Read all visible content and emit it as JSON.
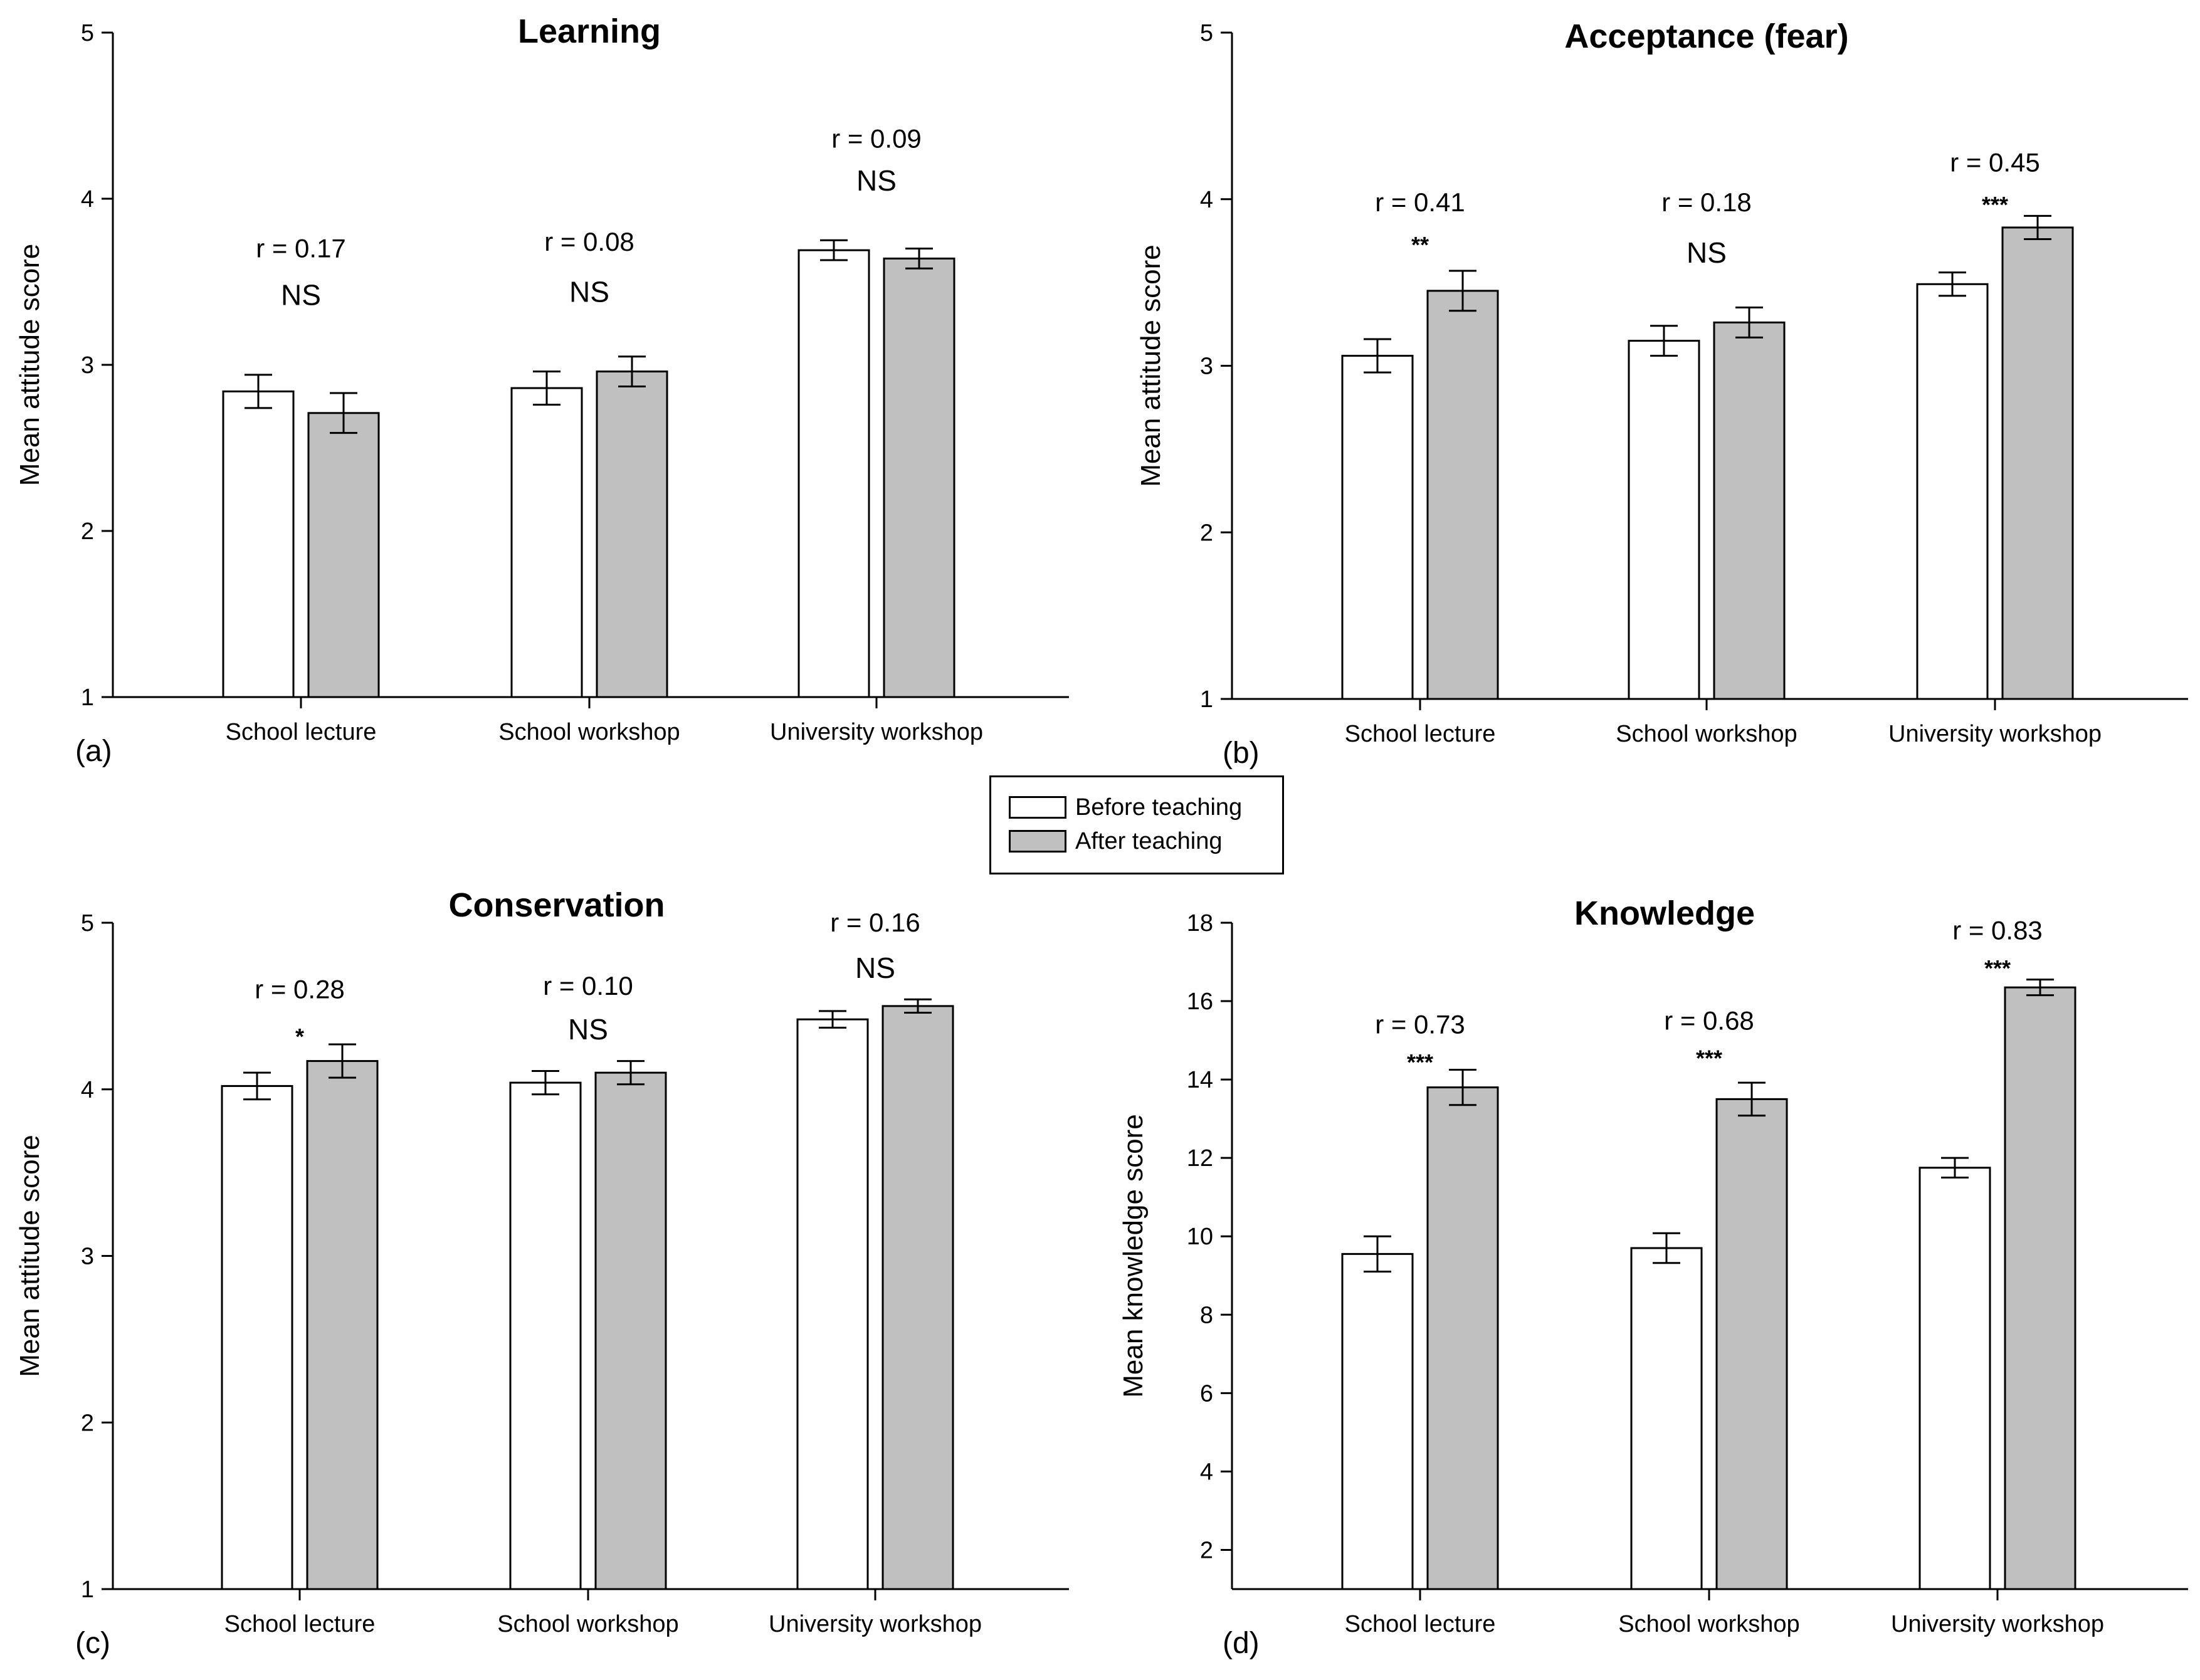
{
  "legend": {
    "before_label": "Before teaching",
    "after_label": "After teaching",
    "before_color": "#ffffff",
    "after_color": "#c0c0c0"
  },
  "chart_data": [
    {
      "type": "bar",
      "panel": "(a)",
      "title": "Learning",
      "ylabel": "Mean attitude score",
      "xlabel": "",
      "ylim": [
        1,
        5
      ],
      "yticks": [
        1,
        2,
        3,
        4,
        5
      ],
      "categories": [
        "School lecture",
        "School workshop",
        "University workshop"
      ],
      "series": [
        {
          "name": "Before teaching",
          "values": [
            2.84,
            2.86,
            3.69
          ],
          "errors": [
            0.1,
            0.1,
            0.06
          ]
        },
        {
          "name": "After teaching",
          "values": [
            2.71,
            2.96,
            3.64
          ],
          "errors": [
            0.12,
            0.09,
            0.06
          ]
        }
      ],
      "annotations": [
        {
          "r": "r = 0.17",
          "sig": "NS",
          "r_y": 3.7,
          "sig_y": 3.42
        },
        {
          "r": "r = 0.08",
          "sig": "NS",
          "r_y": 3.74,
          "sig_y": 3.44
        },
        {
          "r": "r = 0.09",
          "sig": "NS",
          "r_y": 4.36,
          "sig_y": 4.11
        }
      ]
    },
    {
      "type": "bar",
      "panel": "(b)",
      "title": "Acceptance (fear)",
      "ylabel": "Mean attitude score",
      "xlabel": "",
      "ylim": [
        1,
        5
      ],
      "yticks": [
        1,
        2,
        3,
        4,
        5
      ],
      "categories": [
        "School lecture",
        "School workshop",
        "University workshop"
      ],
      "series": [
        {
          "name": "Before teaching",
          "values": [
            3.06,
            3.15,
            3.49
          ],
          "errors": [
            0.1,
            0.09,
            0.07
          ]
        },
        {
          "name": "After teaching",
          "values": [
            3.45,
            3.26,
            3.83
          ],
          "errors": [
            0.12,
            0.09,
            0.07
          ]
        }
      ],
      "annotations": [
        {
          "r": "r = 0.41",
          "sig": "**",
          "r_y": 3.98,
          "sig_y": 3.74
        },
        {
          "r": "r = 0.18",
          "sig": "NS",
          "r_y": 3.98,
          "sig_y": 3.68
        },
        {
          "r": "r = 0.45",
          "sig": "***",
          "r_y": 4.22,
          "sig_y": 3.98
        }
      ]
    },
    {
      "type": "bar",
      "panel": "(c)",
      "title": "Conservation",
      "ylabel": "Mean attitude score",
      "xlabel": "",
      "ylim": [
        1,
        5
      ],
      "yticks": [
        1,
        2,
        3,
        4,
        5
      ],
      "categories": [
        "School lecture",
        "School workshop",
        "University workshop"
      ],
      "series": [
        {
          "name": "Before teaching",
          "values": [
            4.02,
            4.04,
            4.42
          ],
          "errors": [
            0.08,
            0.07,
            0.05
          ]
        },
        {
          "name": "After teaching",
          "values": [
            4.17,
            4.1,
            4.5
          ],
          "errors": [
            0.1,
            0.07,
            0.04
          ]
        }
      ],
      "annotations": [
        {
          "r": "r = 0.28",
          "sig": "*",
          "r_y": 4.6,
          "sig_y": 4.33
        },
        {
          "r": "r = 0.10",
          "sig": "NS",
          "r_y": 4.62,
          "sig_y": 4.36
        },
        {
          "r": "r = 0.16",
          "sig": "NS",
          "r_y": 5.0,
          "sig_y": 4.73
        }
      ]
    },
    {
      "type": "bar",
      "panel": "(d)",
      "title": "Knowledge",
      "ylabel": "Mean knowledge score",
      "xlabel": "",
      "ylim": [
        1,
        18
      ],
      "yticks": [
        2,
        4,
        6,
        8,
        10,
        12,
        14,
        16,
        18
      ],
      "categories": [
        "School lecture",
        "School workshop",
        "University workshop"
      ],
      "series": [
        {
          "name": "Before teaching",
          "values": [
            9.55,
            9.7,
            11.75
          ],
          "errors": [
            0.45,
            0.38,
            0.25
          ]
        },
        {
          "name": "After teaching",
          "values": [
            13.8,
            13.5,
            16.35
          ],
          "errors": [
            0.45,
            0.42,
            0.2
          ]
        }
      ],
      "annotations": [
        {
          "r": "r = 0.73",
          "sig": "***",
          "r_y": 15.4,
          "sig_y": 14.5
        },
        {
          "r": "r = 0.68",
          "sig": "***",
          "r_y": 15.5,
          "sig_y": 14.6
        },
        {
          "r": "r = 0.83",
          "sig": "***",
          "r_y": 17.8,
          "sig_y": 16.9
        }
      ]
    }
  ]
}
